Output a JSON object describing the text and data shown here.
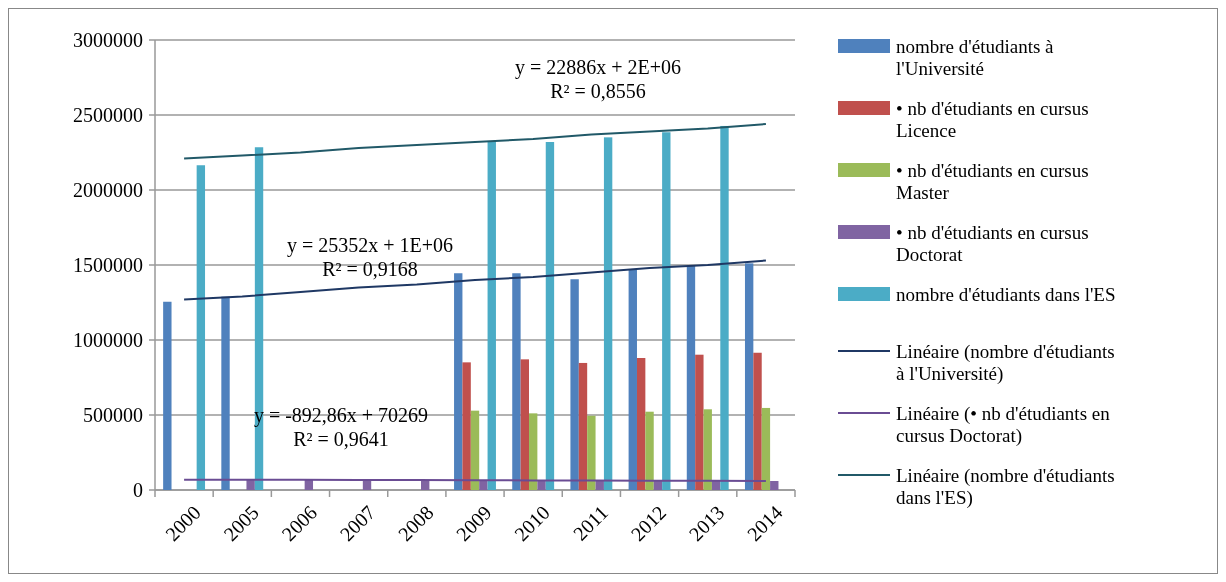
{
  "chart_data": {
    "type": "bar",
    "categories": [
      "2000",
      "2005",
      "2006",
      "2007",
      "2008",
      "2009",
      "2010",
      "2011",
      "2012",
      "2013",
      "2014"
    ],
    "series": [
      {
        "name": "nombre d'étudiants à l'Université",
        "color": "#4f81bd",
        "values": [
          1255000,
          1289000,
          null,
          null,
          null,
          1445000,
          1445000,
          1405000,
          1467000,
          1493000,
          1511000
        ]
      },
      {
        "name": "• nb d'étudiants en cursus Licence",
        "color": "#c0504d",
        "values": [
          null,
          null,
          null,
          null,
          null,
          851000,
          871000,
          847000,
          880000,
          902000,
          915000
        ]
      },
      {
        "name": "• nb d'étudiants en cursus Master",
        "color": "#9bbb59",
        "values": [
          null,
          null,
          null,
          null,
          null,
          529000,
          511000,
          495000,
          522000,
          538000,
          547000
        ]
      },
      {
        "name": "• nb d'étudiants en cursus Doctorat",
        "color": "#8064a2",
        "values": [
          null,
          70000,
          69000,
          68000,
          67000,
          66000,
          65000,
          64000,
          63000,
          62000,
          60000
        ]
      },
      {
        "name": "nombre d'étudiants dans l'ES",
        "color": "#4bacc6",
        "values": [
          2165000,
          2285000,
          null,
          null,
          null,
          2322000,
          2320000,
          2351000,
          2385000,
          2427000,
          null
        ]
      },
      {
        "name": "Linéaire (nombre d'étudiants à l'Université)",
        "type": "line",
        "color": "#1f3864",
        "values": [
          1270000,
          1290000,
          1320000,
          1350000,
          1370000,
          1400000,
          1420000,
          1450000,
          1480000,
          1500000,
          1530000
        ]
      },
      {
        "name": "Linéaire (• nb d'étudiants en cursus Doctorat)",
        "type": "line",
        "color": "#6a4c93",
        "values": [
          69000,
          68000,
          68000,
          67000,
          66000,
          65000,
          64000,
          63000,
          62000,
          61000,
          60000
        ]
      },
      {
        "name": "Linéaire (nombre d'étudiants dans l'ES)",
        "type": "line",
        "color": "#215968",
        "values": [
          2210000,
          2230000,
          2250000,
          2280000,
          2300000,
          2320000,
          2340000,
          2370000,
          2390000,
          2410000,
          2440000
        ]
      }
    ],
    "ylim": [
      0,
      3000000
    ],
    "yticks": [
      0,
      500000,
      1000000,
      1500000,
      2000000,
      2500000,
      3000000
    ],
    "grid": "y",
    "legend": "right",
    "line_style": "solid",
    "annotations": [
      "y = 22886x + 2E+06\nR² = 0,8556",
      "y = 25352x + 1E+06\nR² = 0,9168",
      "y = -892,86x + 70269\nR² = 0,9641"
    ]
  }
}
